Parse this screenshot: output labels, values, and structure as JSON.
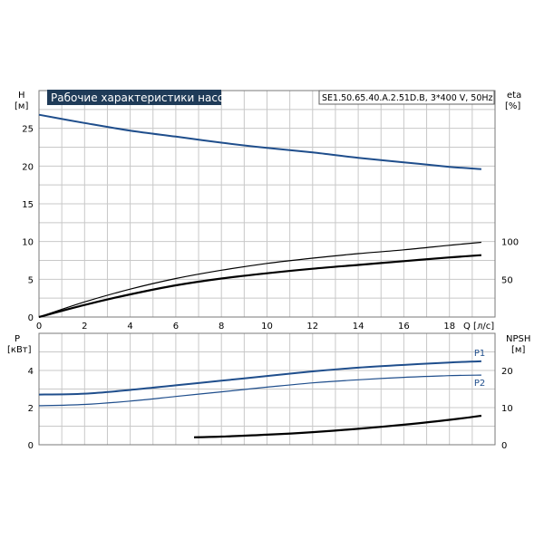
{
  "title": "Рабочие характеристики насоса",
  "pump_info": "SE1.50.65.40.A.2.51D.B, 3*400 V, 50Hz",
  "colors": {
    "head": "#1f4e8c",
    "power": "#1f4e8c",
    "efficiency": "#000000",
    "npsh": "#000000",
    "title_bg": "#1f3b58"
  },
  "chart_data": [
    {
      "type": "line",
      "name": "upper",
      "xlabel": "Q [л/с]",
      "ylabel_left": [
        "H",
        "[м]"
      ],
      "ylabel_right": [
        "eta",
        "[%]"
      ],
      "xlim": [
        0,
        20
      ],
      "ylim_left": [
        0,
        30
      ],
      "ylim_right": [
        0,
        300
      ],
      "x_ticks": [
        "0",
        "2",
        "4",
        "6",
        "8",
        "10",
        "12",
        "14",
        "16",
        "18"
      ],
      "y_ticks_left": [
        "0",
        "5",
        "10",
        "15",
        "20",
        "25"
      ],
      "y_ticks_right": [
        "50",
        "100"
      ],
      "grid": true,
      "series": [
        {
          "key": "head",
          "axis": "left",
          "x": [
            0,
            2,
            4,
            6,
            8,
            10,
            12,
            14,
            16,
            18,
            19.4
          ],
          "values": [
            26.8,
            25.7,
            24.7,
            23.9,
            23.1,
            22.4,
            21.8,
            21.1,
            20.5,
            19.9,
            19.6
          ]
        },
        {
          "key": "eta_thin",
          "axis": "right",
          "x": [
            0,
            2,
            4,
            6,
            8,
            10,
            12,
            14,
            16,
            18,
            19.4
          ],
          "values": [
            0,
            20,
            37,
            51,
            62,
            71,
            78,
            84,
            89,
            95,
            99
          ]
        },
        {
          "key": "eta_thick",
          "axis": "right",
          "x": [
            0,
            2,
            4,
            6,
            8,
            10,
            12,
            14,
            16,
            18,
            19.4
          ],
          "values": [
            0,
            16,
            30,
            42,
            51,
            58,
            64,
            69,
            74,
            79,
            82
          ]
        }
      ]
    },
    {
      "type": "line",
      "name": "lower",
      "ylabel_left": [
        "P",
        "[кВт]"
      ],
      "ylabel_right": [
        "NPSH",
        "[м]"
      ],
      "xlim": [
        0,
        20
      ],
      "ylim_left": [
        0,
        6
      ],
      "ylim_right": [
        0,
        30
      ],
      "y_ticks_left": [
        "0",
        "2",
        "4"
      ],
      "y_ticks_right": [
        "0",
        "10",
        "20"
      ],
      "grid": true,
      "series": [
        {
          "key": "p1",
          "name": "P1",
          "axis": "left",
          "x": [
            0,
            2,
            4,
            6,
            8,
            10,
            12,
            14,
            16,
            18,
            19.4
          ],
          "values": [
            2.7,
            2.75,
            2.95,
            3.2,
            3.45,
            3.7,
            3.95,
            4.15,
            4.3,
            4.43,
            4.5
          ]
        },
        {
          "key": "p2",
          "name": "P2",
          "axis": "left",
          "x": [
            0,
            2,
            4,
            6,
            8,
            10,
            12,
            14,
            16,
            18,
            19.4
          ],
          "values": [
            2.1,
            2.17,
            2.35,
            2.6,
            2.85,
            3.1,
            3.33,
            3.5,
            3.63,
            3.72,
            3.75
          ]
        },
        {
          "key": "npsh",
          "axis": "right",
          "x": [
            6.8,
            8,
            10,
            12,
            14,
            16,
            18,
            19.4
          ],
          "values": [
            2.0,
            2.2,
            2.7,
            3.4,
            4.3,
            5.4,
            6.7,
            7.8
          ]
        }
      ]
    }
  ]
}
